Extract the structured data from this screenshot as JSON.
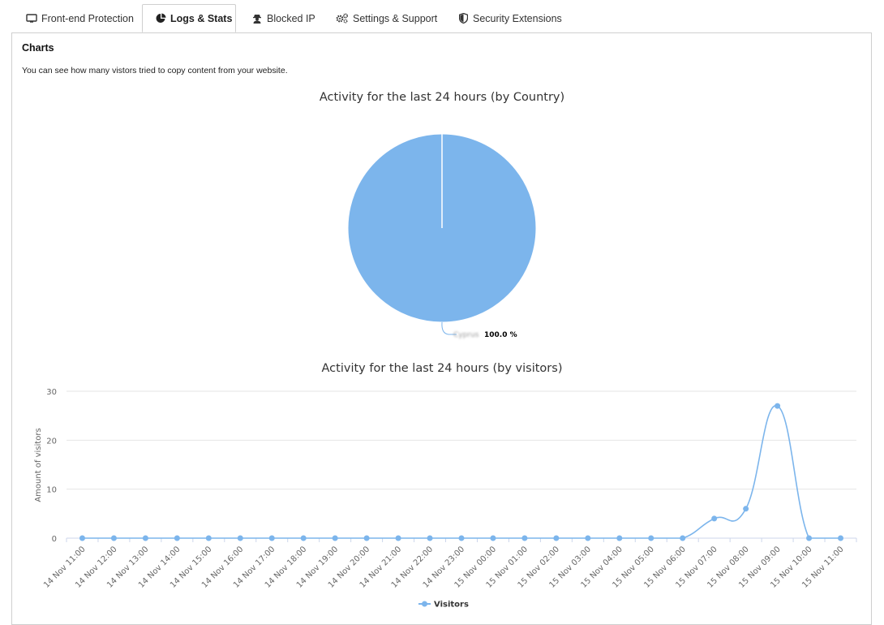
{
  "tabs": [
    {
      "label": "Front-end Protection",
      "icon": "monitor-icon",
      "active": false
    },
    {
      "label": "Logs & Stats",
      "icon": "pie-chart-icon",
      "active": true
    },
    {
      "label": "Blocked IP",
      "icon": "user-secret-icon",
      "active": false
    },
    {
      "label": "Settings & Support",
      "icon": "gears-icon",
      "active": false
    },
    {
      "label": "Security Extensions",
      "icon": "shield-icon",
      "active": false
    }
  ],
  "panel": {
    "title": "Charts",
    "description": "You can see how many vistors tried to copy content from your website."
  },
  "colors": {
    "series": "#7cb5ec",
    "grid": "#e6e6e6",
    "axis": "#ccd6eb"
  },
  "chart_data": [
    {
      "type": "pie",
      "title": "Activity for the last 24 hours (by Country)",
      "slices": [
        {
          "name": "Cyprus",
          "value": 100.0,
          "label": "100.0 %"
        }
      ]
    },
    {
      "type": "line",
      "title": "Activity for the last 24 hours (by visitors)",
      "ylabel": "Amount of visitors",
      "xlabel": "",
      "ylim": [
        0,
        30
      ],
      "yticks": [
        0,
        10,
        20,
        30
      ],
      "grid": true,
      "legend": "bottom-center",
      "categories": [
        "14 Nov 11:00",
        "14 Nov 12:00",
        "14 Nov 13:00",
        "14 Nov 14:00",
        "14 Nov 15:00",
        "14 Nov 16:00",
        "14 Nov 17:00",
        "14 Nov 18:00",
        "14 Nov 19:00",
        "14 Nov 20:00",
        "14 Nov 21:00",
        "14 Nov 22:00",
        "14 Nov 23:00",
        "15 Nov 00:00",
        "15 Nov 01:00",
        "15 Nov 02:00",
        "15 Nov 03:00",
        "15 Nov 04:00",
        "15 Nov 05:00",
        "15 Nov 06:00",
        "15 Nov 07:00",
        "15 Nov 08:00",
        "15 Nov 09:00",
        "15 Nov 10:00",
        "15 Nov 11:00"
      ],
      "series": [
        {
          "name": "Visitors",
          "values": [
            0,
            0,
            0,
            0,
            0,
            0,
            0,
            0,
            0,
            0,
            0,
            0,
            0,
            0,
            0,
            0,
            0,
            0,
            0,
            0,
            4,
            6,
            27,
            0,
            0
          ]
        }
      ]
    }
  ]
}
